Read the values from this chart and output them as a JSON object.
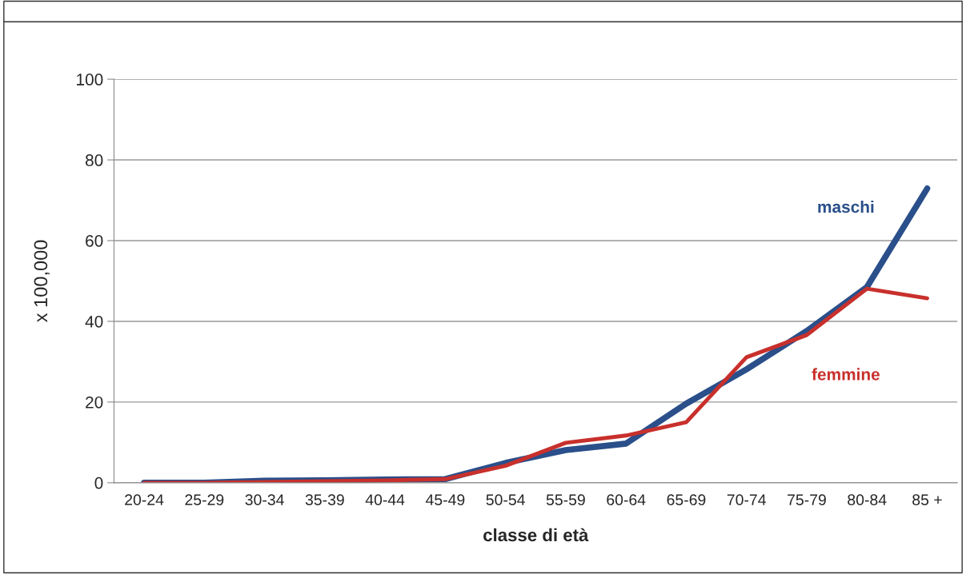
{
  "chart_data": {
    "type": "line",
    "xlabel": "classe di età",
    "ylabel": "x 100,000",
    "categories": [
      "20-24",
      "25-29",
      "30-34",
      "35-39",
      "40-44",
      "45-49",
      "50-54",
      "55-59",
      "60-64",
      "65-69",
      "70-74",
      "75-79",
      "80-84",
      "85 +"
    ],
    "series": [
      {
        "name": "maschi",
        "color": "#2a4f8a",
        "values": [
          0,
          0,
          0.5,
          0.6,
          0.8,
          0.9,
          4.9,
          8.1,
          9.7,
          19.6,
          28.1,
          37.6,
          48.5,
          72.9
        ]
      },
      {
        "name": "femmine",
        "color": "#c8302c",
        "values": [
          0,
          0,
          0.2,
          0.4,
          0.6,
          0.9,
          4.2,
          9.9,
          11.7,
          15,
          31.1,
          36.6,
          48.1,
          45.7
        ]
      }
    ],
    "ylim": [
      0,
      100
    ],
    "yticks": [
      0,
      20,
      40,
      60,
      80,
      100
    ],
    "grid": "y",
    "legend": false,
    "marker": "none",
    "line_style": "solid"
  }
}
